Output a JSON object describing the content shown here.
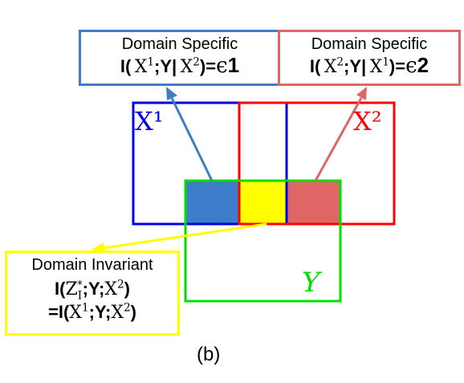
{
  "callouts": {
    "left": {
      "title": "Domain Specific",
      "formula": "I(X¹;Y|X²)=ϵ1"
    },
    "right": {
      "title": "Domain Specific",
      "formula": "I(X²;Y|X¹)=ϵ2"
    },
    "invariant": {
      "title": "Domain Invariant",
      "formula_1": "I(Z*I;Y;X²)",
      "formula_2": "=I(X¹;Y;X²)"
    }
  },
  "sets": {
    "x1": "X¹",
    "x2": "X²",
    "y": "Y"
  },
  "caption": "(b)",
  "colors": {
    "x1_border": "#0000e0",
    "x2_border": "#ff0000",
    "y_border": "#00e000",
    "specific_x1_fill": "#3d7dc9",
    "specific_x2_fill": "#e06666",
    "invariant_fill": "#ffff00"
  }
}
